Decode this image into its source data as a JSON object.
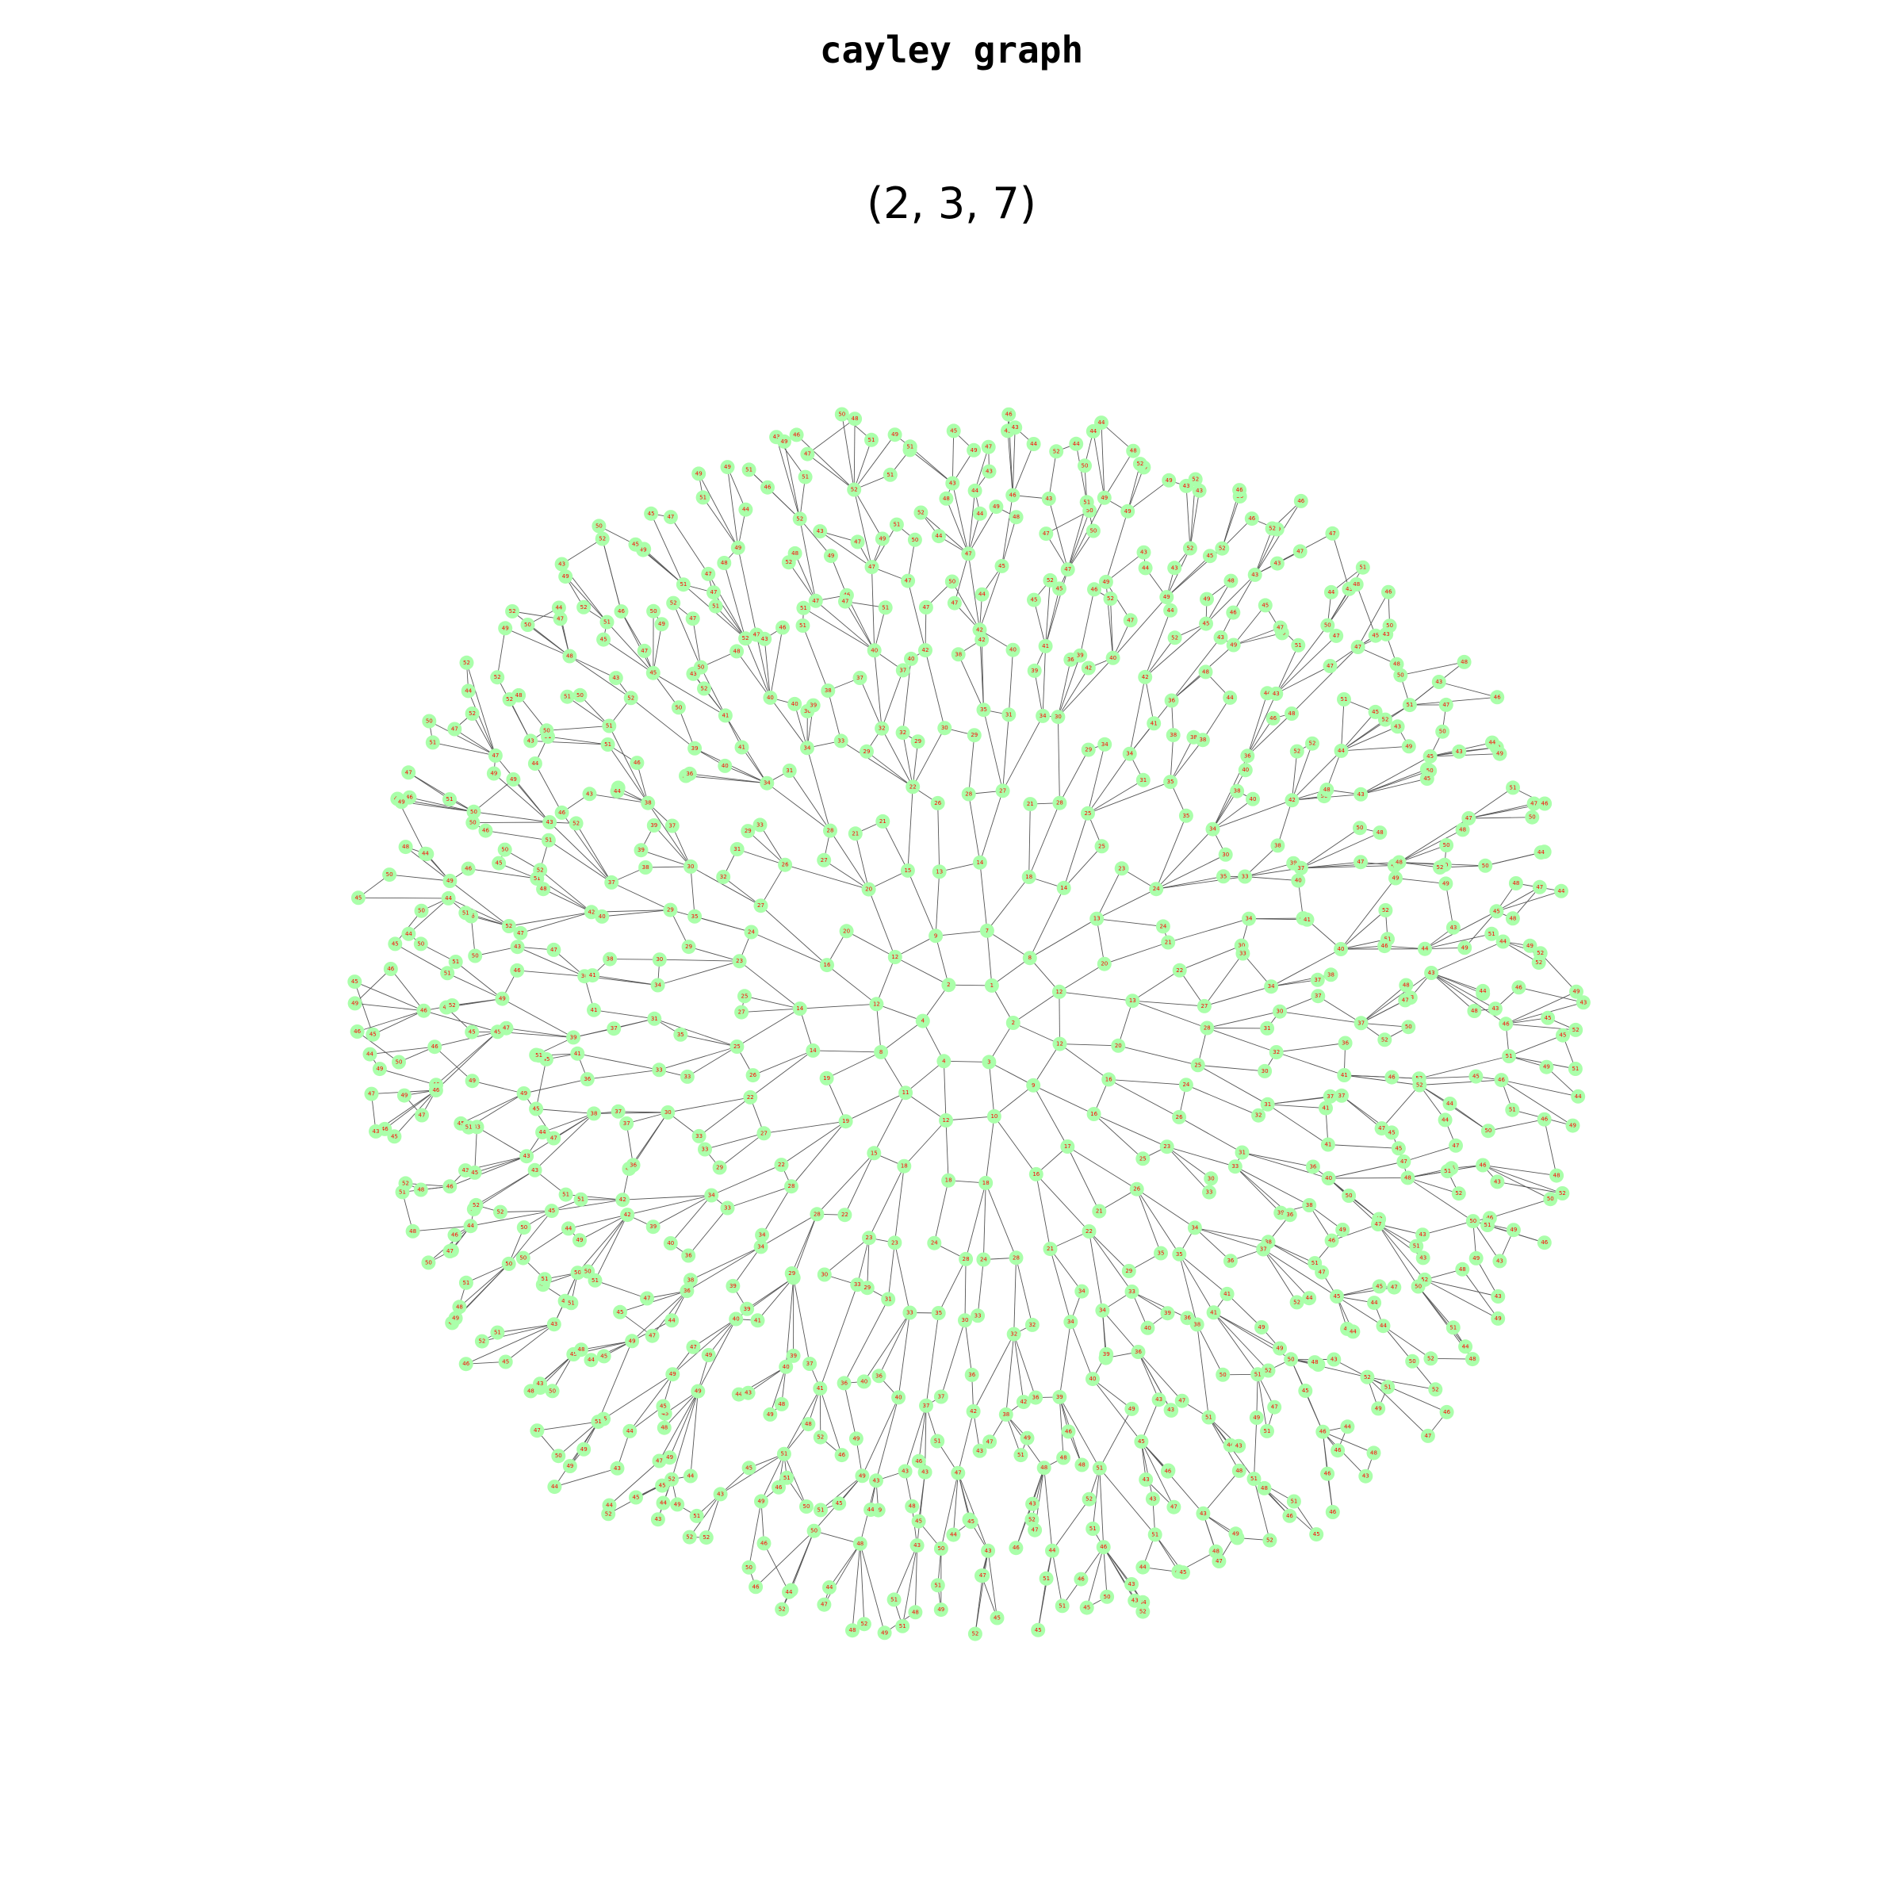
{
  "figure": {
    "title": "cayley graph",
    "subtitle": "(2, 3, 7)",
    "colors": {
      "node": "#aaffaa",
      "label": "#ff0000",
      "edge": "#555555",
      "arrow": "#000000"
    }
  },
  "graph": {
    "type": "cayley-graph",
    "group": "(2, 3, 7)",
    "node_labels_by_ring": [
      [
        "1",
        "2",
        "3",
        "4",
        "5"
      ],
      [
        "6",
        "7",
        "8",
        "9",
        "10",
        "11",
        "12"
      ],
      [
        "13",
        "14",
        "15",
        "16",
        "17",
        "18",
        "19",
        "20"
      ],
      [
        "21",
        "22",
        "23",
        "24",
        "25",
        "26",
        "27",
        "28"
      ],
      [
        "29",
        "30",
        "31",
        "32",
        "33",
        "34",
        "35"
      ],
      [
        "36",
        "37",
        "38",
        "39",
        "40",
        "41",
        "42"
      ],
      [
        "43",
        "44",
        "45",
        "46",
        "47",
        "48",
        "49",
        "50",
        "51",
        "52"
      ]
    ]
  }
}
